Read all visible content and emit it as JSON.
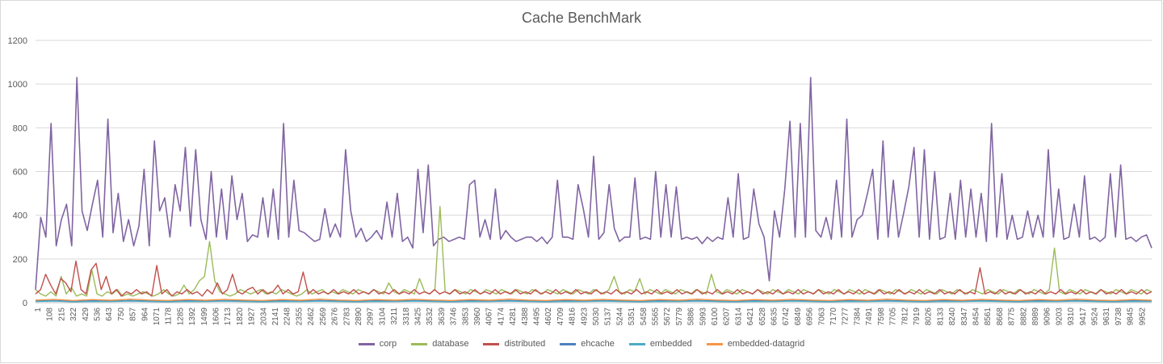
{
  "chart_data": {
    "type": "line",
    "title": "Cache BenchMark",
    "xlabel": "",
    "ylabel": "",
    "ylim": [
      0,
      1200
    ],
    "y_ticks": [
      0,
      200,
      400,
      600,
      800,
      1000,
      1200
    ],
    "grid": true,
    "legend_position": "bottom",
    "x_tick_labels": [
      "1",
      "108",
      "215",
      "322",
      "429",
      "536",
      "643",
      "750",
      "857",
      "964",
      "1071",
      "1178",
      "1285",
      "1392",
      "1499",
      "1606",
      "1713",
      "1820",
      "1927",
      "2034",
      "2141",
      "2248",
      "2355",
      "2462",
      "2569",
      "2676",
      "2783",
      "2890",
      "2997",
      "3104",
      "3211",
      "3318",
      "3425",
      "3532",
      "3639",
      "3746",
      "3853",
      "3960",
      "4067",
      "4174",
      "4281",
      "4388",
      "4495",
      "4602",
      "4709",
      "4816",
      "4923",
      "5030",
      "5137",
      "5244",
      "5351",
      "5458",
      "5565",
      "5672",
      "5779",
      "5886",
      "5993",
      "6100",
      "6207",
      "6314",
      "6421",
      "6528",
      "6635",
      "6742",
      "6849",
      "6956",
      "7063",
      "7170",
      "7277",
      "7384",
      "7491",
      "7598",
      "7705",
      "7812",
      "7919",
      "8026",
      "8133",
      "8240",
      "8347",
      "8454",
      "8561",
      "8668",
      "8775",
      "8882",
      "8989",
      "9096",
      "9203",
      "9310",
      "9417",
      "9524",
      "9631",
      "9738",
      "9845",
      "9952"
    ],
    "series": [
      {
        "name": "corp",
        "color": "#8064a2",
        "values": [
          60,
          390,
          300,
          820,
          260,
          380,
          450,
          260,
          1030,
          420,
          330,
          450,
          560,
          300,
          840,
          320,
          500,
          280,
          380,
          260,
          350,
          610,
          260,
          740,
          420,
          480,
          300,
          540,
          420,
          710,
          350,
          700,
          380,
          290,
          600,
          300,
          520,
          290,
          580,
          380,
          500,
          280,
          310,
          300,
          480,
          300,
          520,
          290,
          820,
          300,
          560,
          330,
          320,
          300,
          280,
          290,
          430,
          300,
          360,
          300,
          700,
          420,
          300,
          340,
          280,
          300,
          330,
          290,
          460,
          300,
          500,
          280,
          300,
          250,
          610,
          320,
          630,
          260,
          290,
          300,
          280,
          290,
          300,
          290,
          540,
          560,
          300,
          380,
          290,
          520,
          290,
          330,
          300,
          280,
          290,
          300,
          300,
          280,
          300,
          270,
          300,
          560,
          300,
          300,
          290,
          540,
          430,
          300,
          670,
          290,
          320,
          540,
          340,
          280,
          300,
          300,
          570,
          290,
          300,
          290,
          600,
          300,
          540,
          300,
          530,
          290,
          300,
          290,
          300,
          270,
          300,
          280,
          300,
          290,
          480,
          300,
          590,
          290,
          300,
          520,
          360,
          300,
          100,
          420,
          300,
          520,
          830,
          300,
          820,
          300,
          1030,
          330,
          300,
          390,
          290,
          560,
          300,
          840,
          300,
          380,
          400,
          500,
          610,
          290,
          740,
          300,
          560,
          300,
          410,
          530,
          710,
          300,
          700,
          290,
          600,
          290,
          300,
          500,
          290,
          560,
          300,
          520,
          300,
          500,
          280,
          820,
          300,
          590,
          290,
          400,
          290,
          300,
          420,
          300,
          400,
          300,
          700,
          300,
          520,
          290,
          300,
          450,
          300,
          580,
          290,
          300,
          280,
          300,
          590,
          300,
          630,
          290,
          300,
          280,
          300,
          310,
          250
        ]
      },
      {
        "name": "database",
        "color": "#9bbb59",
        "values": [
          60,
          40,
          30,
          50,
          30,
          120,
          40,
          70,
          30,
          40,
          30,
          150,
          40,
          30,
          50,
          40,
          60,
          30,
          40,
          30,
          40,
          50,
          40,
          30,
          40,
          60,
          40,
          30,
          40,
          80,
          40,
          60,
          100,
          120,
          280,
          100,
          50,
          40,
          30,
          40,
          60,
          50,
          40,
          50,
          60,
          40,
          50,
          40,
          60,
          50,
          40,
          30,
          40,
          60,
          40,
          50,
          60,
          40,
          50,
          40,
          60,
          50,
          40,
          60,
          50,
          40,
          60,
          50,
          40,
          90,
          50,
          40,
          60,
          50,
          40,
          110,
          50,
          40,
          60,
          440,
          50,
          40,
          60,
          50,
          40,
          60,
          50,
          40,
          60,
          50,
          40,
          60,
          50,
          40,
          60,
          50,
          40,
          60,
          50,
          40,
          60,
          50,
          40,
          60,
          50,
          40,
          60,
          50,
          40,
          60,
          50,
          40,
          60,
          120,
          50,
          40,
          60,
          50,
          110,
          40,
          60,
          50,
          40,
          60,
          50,
          40,
          60,
          50,
          40,
          60,
          50,
          40,
          130,
          50,
          40,
          60,
          50,
          40,
          60,
          50,
          40,
          60,
          50,
          40,
          60,
          50,
          40,
          60,
          50,
          40,
          60,
          50,
          40,
          60,
          50,
          40,
          60,
          50,
          40,
          60,
          50,
          40,
          60,
          50,
          40,
          60,
          50,
          40,
          60,
          50,
          40,
          60,
          50,
          40,
          60,
          50,
          40,
          60,
          50,
          40,
          60,
          50,
          40,
          60,
          50,
          40,
          60,
          50,
          40,
          60,
          50,
          40,
          60,
          50,
          40,
          60,
          50,
          40,
          60,
          250,
          50,
          40,
          60,
          50,
          40,
          60,
          50,
          40,
          60,
          50,
          40,
          60,
          50,
          40,
          60,
          50,
          40,
          60,
          50
        ]
      },
      {
        "name": "distributed",
        "color": "#c0504d",
        "values": [
          40,
          60,
          130,
          80,
          40,
          110,
          90,
          50,
          190,
          60,
          40,
          150,
          180,
          60,
          120,
          40,
          60,
          30,
          50,
          40,
          60,
          40,
          50,
          30,
          170,
          40,
          60,
          30,
          50,
          40,
          60,
          40,
          50,
          30,
          60,
          40,
          90,
          40,
          60,
          130,
          50,
          40,
          60,
          70,
          40,
          60,
          40,
          50,
          80,
          40,
          60,
          40,
          50,
          140,
          40,
          60,
          40,
          50,
          40,
          60,
          40,
          50,
          40,
          60,
          40,
          50,
          40,
          60,
          40,
          50,
          40,
          60,
          40,
          50,
          40,
          60,
          40,
          50,
          40,
          60,
          40,
          50,
          40,
          60,
          40,
          50,
          40,
          60,
          40,
          50,
          40,
          60,
          40,
          50,
          40,
          60,
          40,
          50,
          40,
          60,
          40,
          50,
          40,
          60,
          40,
          50,
          40,
          60,
          40,
          50,
          40,
          60,
          40,
          50,
          40,
          60,
          40,
          50,
          40,
          60,
          40,
          50,
          40,
          60,
          40,
          50,
          40,
          60,
          40,
          50,
          40,
          60,
          40,
          50,
          40,
          60,
          40,
          50,
          40,
          60,
          40,
          50,
          40,
          60,
          40,
          50,
          40,
          60,
          40,
          50,
          40,
          60,
          40,
          50,
          40,
          60,
          40,
          50,
          40,
          60,
          40,
          50,
          40,
          60,
          40,
          50,
          40,
          60,
          40,
          50,
          40,
          60,
          40,
          50,
          40,
          60,
          40,
          50,
          40,
          60,
          40,
          50,
          40,
          60,
          40,
          50,
          40,
          160,
          40,
          50,
          40,
          60,
          40,
          50,
          40,
          60,
          40,
          50,
          40,
          60,
          40,
          50,
          40,
          60,
          40,
          50,
          40,
          60,
          40,
          50,
          40,
          60,
          40,
          50,
          40,
          60,
          40,
          50,
          40,
          60,
          40,
          50
        ]
      },
      {
        "name": "ehcache",
        "color": "#4f81bd",
        "values": [
          8,
          10,
          6,
          9,
          7,
          10,
          8,
          6,
          9,
          7,
          10,
          8,
          6,
          9,
          7,
          10,
          8,
          6,
          9,
          7,
          10,
          8,
          6,
          9,
          7,
          10,
          8,
          6,
          9,
          7,
          10,
          8,
          6,
          9,
          7,
          10,
          8,
          6,
          9,
          7,
          10,
          8,
          6,
          9,
          7,
          10,
          8,
          6,
          9,
          7,
          10,
          8,
          6,
          9,
          7,
          10,
          8,
          6,
          9,
          7
        ]
      },
      {
        "name": "embedded",
        "color": "#4bacc6",
        "values": [
          5,
          7,
          4,
          6,
          5,
          7,
          5,
          4,
          6,
          5,
          7,
          5,
          4,
          6,
          5,
          7,
          5,
          4,
          6,
          5,
          7,
          5,
          4,
          6,
          5,
          7,
          5,
          4,
          6,
          5,
          7,
          5,
          4,
          6,
          5,
          7,
          5,
          4,
          6,
          5,
          7,
          5,
          4,
          6,
          5,
          7,
          5,
          4,
          6,
          5,
          7,
          5,
          4,
          6,
          5,
          7,
          5,
          4,
          6,
          5
        ]
      },
      {
        "name": "embedded-datagrid",
        "color": "#f79646",
        "values": [
          12,
          15,
          10,
          14,
          11,
          16,
          12,
          10,
          14,
          11,
          15,
          12,
          10,
          14,
          11,
          16,
          12,
          10,
          14,
          11,
          15,
          12,
          10,
          14,
          11,
          16,
          12,
          10,
          14,
          11,
          15,
          12,
          10,
          14,
          11,
          16,
          12,
          10,
          14,
          11,
          15,
          12,
          10,
          14,
          11,
          16,
          12,
          10,
          14,
          11,
          15,
          12,
          10,
          14,
          11,
          16,
          12,
          10,
          14,
          11
        ]
      }
    ]
  }
}
